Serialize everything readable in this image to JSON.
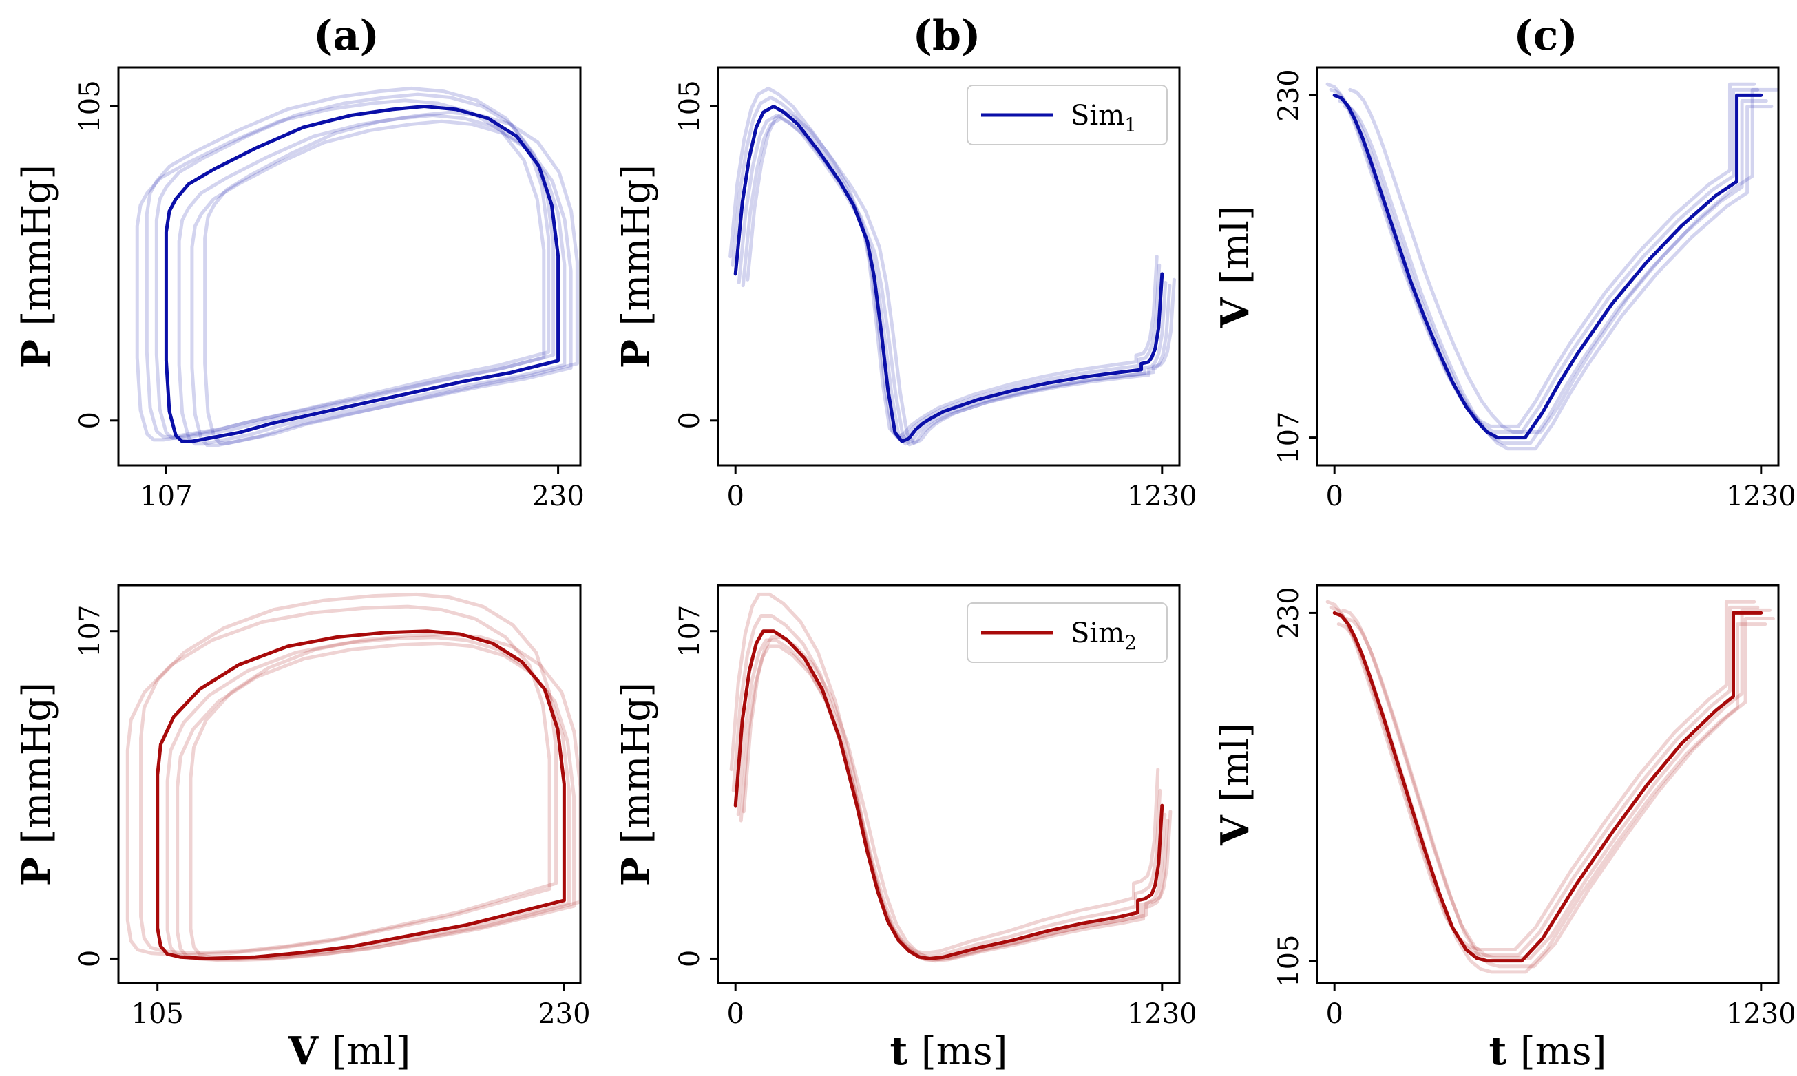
{
  "colors": {
    "sim1": "#0a0fa8",
    "sim2": "#a80a0a",
    "sim1_light": "#0a0fa8",
    "sim2_light": "#a80a0a"
  },
  "panel_labels": [
    "(a)",
    "(b)",
    "(c)"
  ],
  "chart_data": [
    {
      "id": "a1",
      "type": "line",
      "column": "(a)",
      "xlabel": "",
      "ylabel": "P",
      "ylabel_unit": "[mmHg]",
      "xlim": [
        92,
        237
      ],
      "ylim": [
        -15,
        118
      ],
      "xticks": [
        "107",
        "230"
      ],
      "yticks": [
        "0",
        "105"
      ],
      "x_tick_values": [
        107,
        230
      ],
      "y_tick_values": [
        0,
        105
      ],
      "color_key": "sim1",
      "series": [
        {
          "role": "main",
          "x": [
            230,
            230,
            228,
            224,
            217,
            208,
            198,
            188,
            178,
            165,
            150,
            135,
            122,
            114,
            110,
            108,
            107,
            107,
            107,
            108,
            110,
            112,
            115,
            120,
            130,
            140,
            155,
            170,
            185,
            200,
            215,
            230
          ],
          "y": [
            20,
            55,
            72,
            85,
            95,
            101,
            104,
            105,
            104,
            102,
            98,
            91,
            84,
            79,
            74,
            70,
            63,
            45,
            20,
            3,
            -5,
            -7,
            -7,
            -6,
            -4,
            -1,
            2.5,
            6,
            9.5,
            13,
            16,
            20
          ]
        },
        {
          "role": "ensemble",
          "shift_x": -9,
          "shift_y": 2
        },
        {
          "role": "ensemble",
          "shift_x": -6,
          "shift_y": 6
        },
        {
          "role": "ensemble",
          "shift_x": -3,
          "shift_y": 4
        },
        {
          "role": "ensemble",
          "shift_x": 4,
          "shift_y": -3
        },
        {
          "role": "ensemble",
          "shift_x": 8,
          "shift_y": -5
        },
        {
          "role": "ensemble",
          "shift_x": 12,
          "shift_y": -2
        }
      ]
    },
    {
      "id": "b1",
      "type": "line",
      "column": "(b)",
      "xlabel": "",
      "ylabel": "P",
      "ylabel_unit": "[mmHg]",
      "xlim": [
        -50,
        1280
      ],
      "ylim": [
        -15,
        118
      ],
      "xticks": [
        "0",
        "1230"
      ],
      "yticks": [
        "0",
        "105"
      ],
      "x_tick_values": [
        0,
        1230
      ],
      "y_tick_values": [
        0,
        105
      ],
      "color_key": "sim1",
      "legend": {
        "label": "Sim",
        "subscript": "1",
        "loc": "upper right"
      },
      "series": [
        {
          "role": "main",
          "x": [
            0,
            20,
            40,
            60,
            80,
            110,
            140,
            180,
            240,
            300,
            340,
            380,
            400,
            420,
            440,
            460,
            480,
            500,
            520,
            540,
            560,
            600,
            700,
            800,
            900,
            1000,
            1100,
            1170,
            1170,
            1190,
            1200,
            1210,
            1220,
            1230
          ],
          "y": [
            49,
            73,
            88,
            98,
            103,
            105,
            103,
            99,
            90,
            80,
            72,
            60,
            48,
            30,
            10,
            -4,
            -7,
            -6,
            -3,
            -1,
            0.5,
            3,
            7,
            10,
            12.5,
            14.5,
            16,
            17,
            19,
            19.5,
            21,
            24,
            31,
            49
          ]
        },
        {
          "role": "ensemble",
          "shift_x": -15,
          "shift_y": 6
        },
        {
          "role": "ensemble",
          "shift_x": -8,
          "shift_y": 3
        },
        {
          "role": "ensemble",
          "shift_x": 10,
          "shift_y": -3
        },
        {
          "role": "ensemble",
          "shift_x": 22,
          "shift_y": -4
        },
        {
          "role": "ensemble",
          "shift_x": 35,
          "shift_y": -2
        }
      ]
    },
    {
      "id": "c1",
      "type": "line",
      "column": "(c)",
      "xlabel": "",
      "ylabel": "V",
      "ylabel_unit": "[ml]",
      "xlim": [
        -50,
        1280
      ],
      "ylim": [
        97,
        240
      ],
      "xticks": [
        "0",
        "1230"
      ],
      "yticks": [
        "107",
        "230"
      ],
      "x_tick_values": [
        0,
        1230
      ],
      "y_tick_values": [
        107,
        230
      ],
      "color_key": "sim1",
      "series": [
        {
          "role": "main",
          "x": [
            0,
            20,
            40,
            60,
            80,
            100,
            140,
            180,
            220,
            260,
            300,
            340,
            380,
            410,
            440,
            470,
            500,
            550,
            600,
            650,
            700,
            800,
            900,
            1000,
            1100,
            1160,
            1160,
            1170,
            1230
          ],
          "y": [
            230,
            229,
            226,
            221,
            215,
            208,
            193,
            178,
            163,
            150,
            138,
            127,
            118,
            113,
            109,
            107,
            107,
            107,
            116,
            127,
            137,
            155,
            170,
            183,
            194,
            199,
            230,
            230,
            230
          ]
        },
        {
          "role": "ensemble",
          "shift_x": -20,
          "shift_y": 4
        },
        {
          "role": "ensemble",
          "shift_x": -10,
          "shift_y": 2
        },
        {
          "role": "ensemble",
          "shift_x": 15,
          "shift_y": -2
        },
        {
          "role": "ensemble",
          "shift_x": 30,
          "shift_y": -4
        },
        {
          "role": "ensemble",
          "shift_x": 45,
          "shift_y": 2
        }
      ]
    },
    {
      "id": "a2",
      "type": "line",
      "column": "(a)",
      "xlabel": "V",
      "xlabel_unit": "[ml]",
      "ylabel": "P",
      "ylabel_unit": "[mmHg]",
      "xlim": [
        93,
        235
      ],
      "ylim": [
        -8,
        122
      ],
      "xticks": [
        "105",
        "230"
      ],
      "yticks": [
        "0",
        "107"
      ],
      "x_tick_values": [
        105,
        230
      ],
      "y_tick_values": [
        0,
        107
      ],
      "color_key": "sim2",
      "series": [
        {
          "role": "main",
          "x": [
            230,
            230,
            228,
            224,
            217,
            208,
            198,
            188,
            175,
            160,
            145,
            130,
            118,
            110,
            106,
            105,
            105,
            105,
            106,
            108,
            112,
            120,
            135,
            150,
            165,
            180,
            200,
            215,
            230
          ],
          "y": [
            19,
            57,
            75,
            88,
            97,
            103,
            106,
            107,
            106.5,
            105,
            102,
            96,
            88,
            79,
            70,
            60,
            30,
            10,
            4,
            1.5,
            0.5,
            0,
            0.5,
            2,
            4,
            7,
            11,
            15,
            19
          ]
        },
        {
          "role": "ensemble",
          "shift_x": -9,
          "shift_y": 8
        },
        {
          "role": "ensemble",
          "shift_x": -5,
          "shift_y": 12
        },
        {
          "role": "ensemble",
          "shift_x": 3,
          "shift_y": -2
        },
        {
          "role": "ensemble",
          "shift_x": 6,
          "shift_y": -4
        },
        {
          "role": "ensemble",
          "shift_x": 10,
          "shift_y": -1
        }
      ]
    },
    {
      "id": "b2",
      "type": "line",
      "column": "(b)",
      "xlabel": "t",
      "xlabel_unit": "[ms]",
      "ylabel": "P",
      "ylabel_unit": "[mmHg]",
      "xlim": [
        -50,
        1280
      ],
      "ylim": [
        -8,
        122
      ],
      "xticks": [
        "0",
        "1230"
      ],
      "yticks": [
        "0",
        "107"
      ],
      "x_tick_values": [
        0,
        1230
      ],
      "y_tick_values": [
        0,
        107
      ],
      "color_key": "sim2",
      "legend": {
        "label": "Sim",
        "subscript": "2",
        "loc": "upper right"
      },
      "series": [
        {
          "role": "main",
          "x": [
            0,
            20,
            40,
            60,
            80,
            110,
            150,
            200,
            250,
            300,
            350,
            380,
            410,
            440,
            470,
            500,
            530,
            560,
            600,
            650,
            700,
            800,
            900,
            1000,
            1100,
            1160,
            1160,
            1180,
            1200,
            1210,
            1220,
            1230
          ],
          "y": [
            50,
            78,
            94,
            103,
            107,
            107,
            104,
            98,
            88,
            72,
            50,
            35,
            22,
            12,
            6,
            2.5,
            0.5,
            0,
            0.5,
            2,
            3.5,
            6,
            9,
            11.5,
            13.5,
            15,
            19,
            19.5,
            21,
            24,
            31,
            50
          ]
        },
        {
          "role": "ensemble",
          "shift_x": -12,
          "shift_y": 12
        },
        {
          "role": "ensemble",
          "shift_x": -6,
          "shift_y": 5
        },
        {
          "role": "ensemble",
          "shift_x": 8,
          "shift_y": -3
        },
        {
          "role": "ensemble",
          "shift_x": 16,
          "shift_y": -5
        },
        {
          "role": "ensemble",
          "shift_x": 24,
          "shift_y": -2
        }
      ]
    },
    {
      "id": "c2",
      "type": "line",
      "column": "(c)",
      "xlabel": "t",
      "xlabel_unit": "[ms]",
      "ylabel": "V",
      "ylabel_unit": "[ml]",
      "xlim": [
        -50,
        1280
      ],
      "ylim": [
        97,
        240
      ],
      "xticks": [
        "0",
        "1230"
      ],
      "yticks": [
        "105",
        "230"
      ],
      "x_tick_values": [
        0,
        1230
      ],
      "y_tick_values": [
        105,
        230
      ],
      "color_key": "sim2",
      "series": [
        {
          "role": "main",
          "x": [
            0,
            20,
            40,
            60,
            80,
            100,
            140,
            180,
            220,
            260,
            300,
            340,
            380,
            410,
            440,
            470,
            500,
            540,
            600,
            650,
            700,
            800,
            900,
            1000,
            1100,
            1150,
            1150,
            1170,
            1230
          ],
          "y": [
            230,
            229,
            226,
            221,
            215,
            208,
            193,
            177,
            161,
            145,
            130,
            117,
            109,
            106,
            105,
            105,
            105,
            105,
            113,
            123,
            133,
            151,
            168,
            183,
            195,
            200,
            230,
            230,
            230
          ]
        },
        {
          "role": "ensemble",
          "shift_x": -20,
          "shift_y": 4
        },
        {
          "role": "ensemble",
          "shift_x": -10,
          "shift_y": 2
        },
        {
          "role": "ensemble",
          "shift_x": 12,
          "shift_y": -4
        },
        {
          "role": "ensemble",
          "shift_x": 25,
          "shift_y": 1
        },
        {
          "role": "ensemble",
          "shift_x": 35,
          "shift_y": -2
        }
      ]
    }
  ]
}
